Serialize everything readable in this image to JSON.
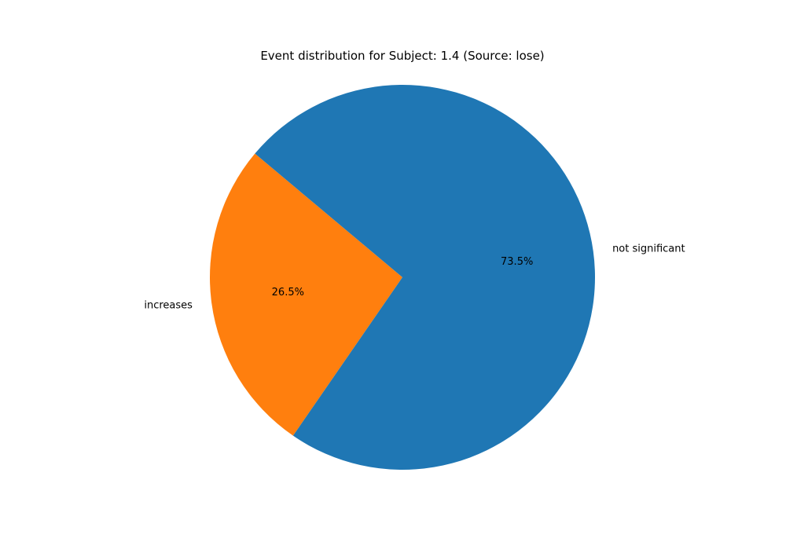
{
  "chart_data": {
    "type": "pie",
    "title": "Event distribution for Subject: 1.4 (Source: lose)",
    "slices": [
      {
        "label": "increases",
        "value": 26.5,
        "pct_label": "26.5%",
        "color": "#ff7f0e"
      },
      {
        "label": "not significant",
        "value": 73.5,
        "pct_label": "73.5%",
        "color": "#1f77b4"
      }
    ],
    "start_angle_deg": 140,
    "direction": "counterclockwise",
    "legend": "none"
  }
}
